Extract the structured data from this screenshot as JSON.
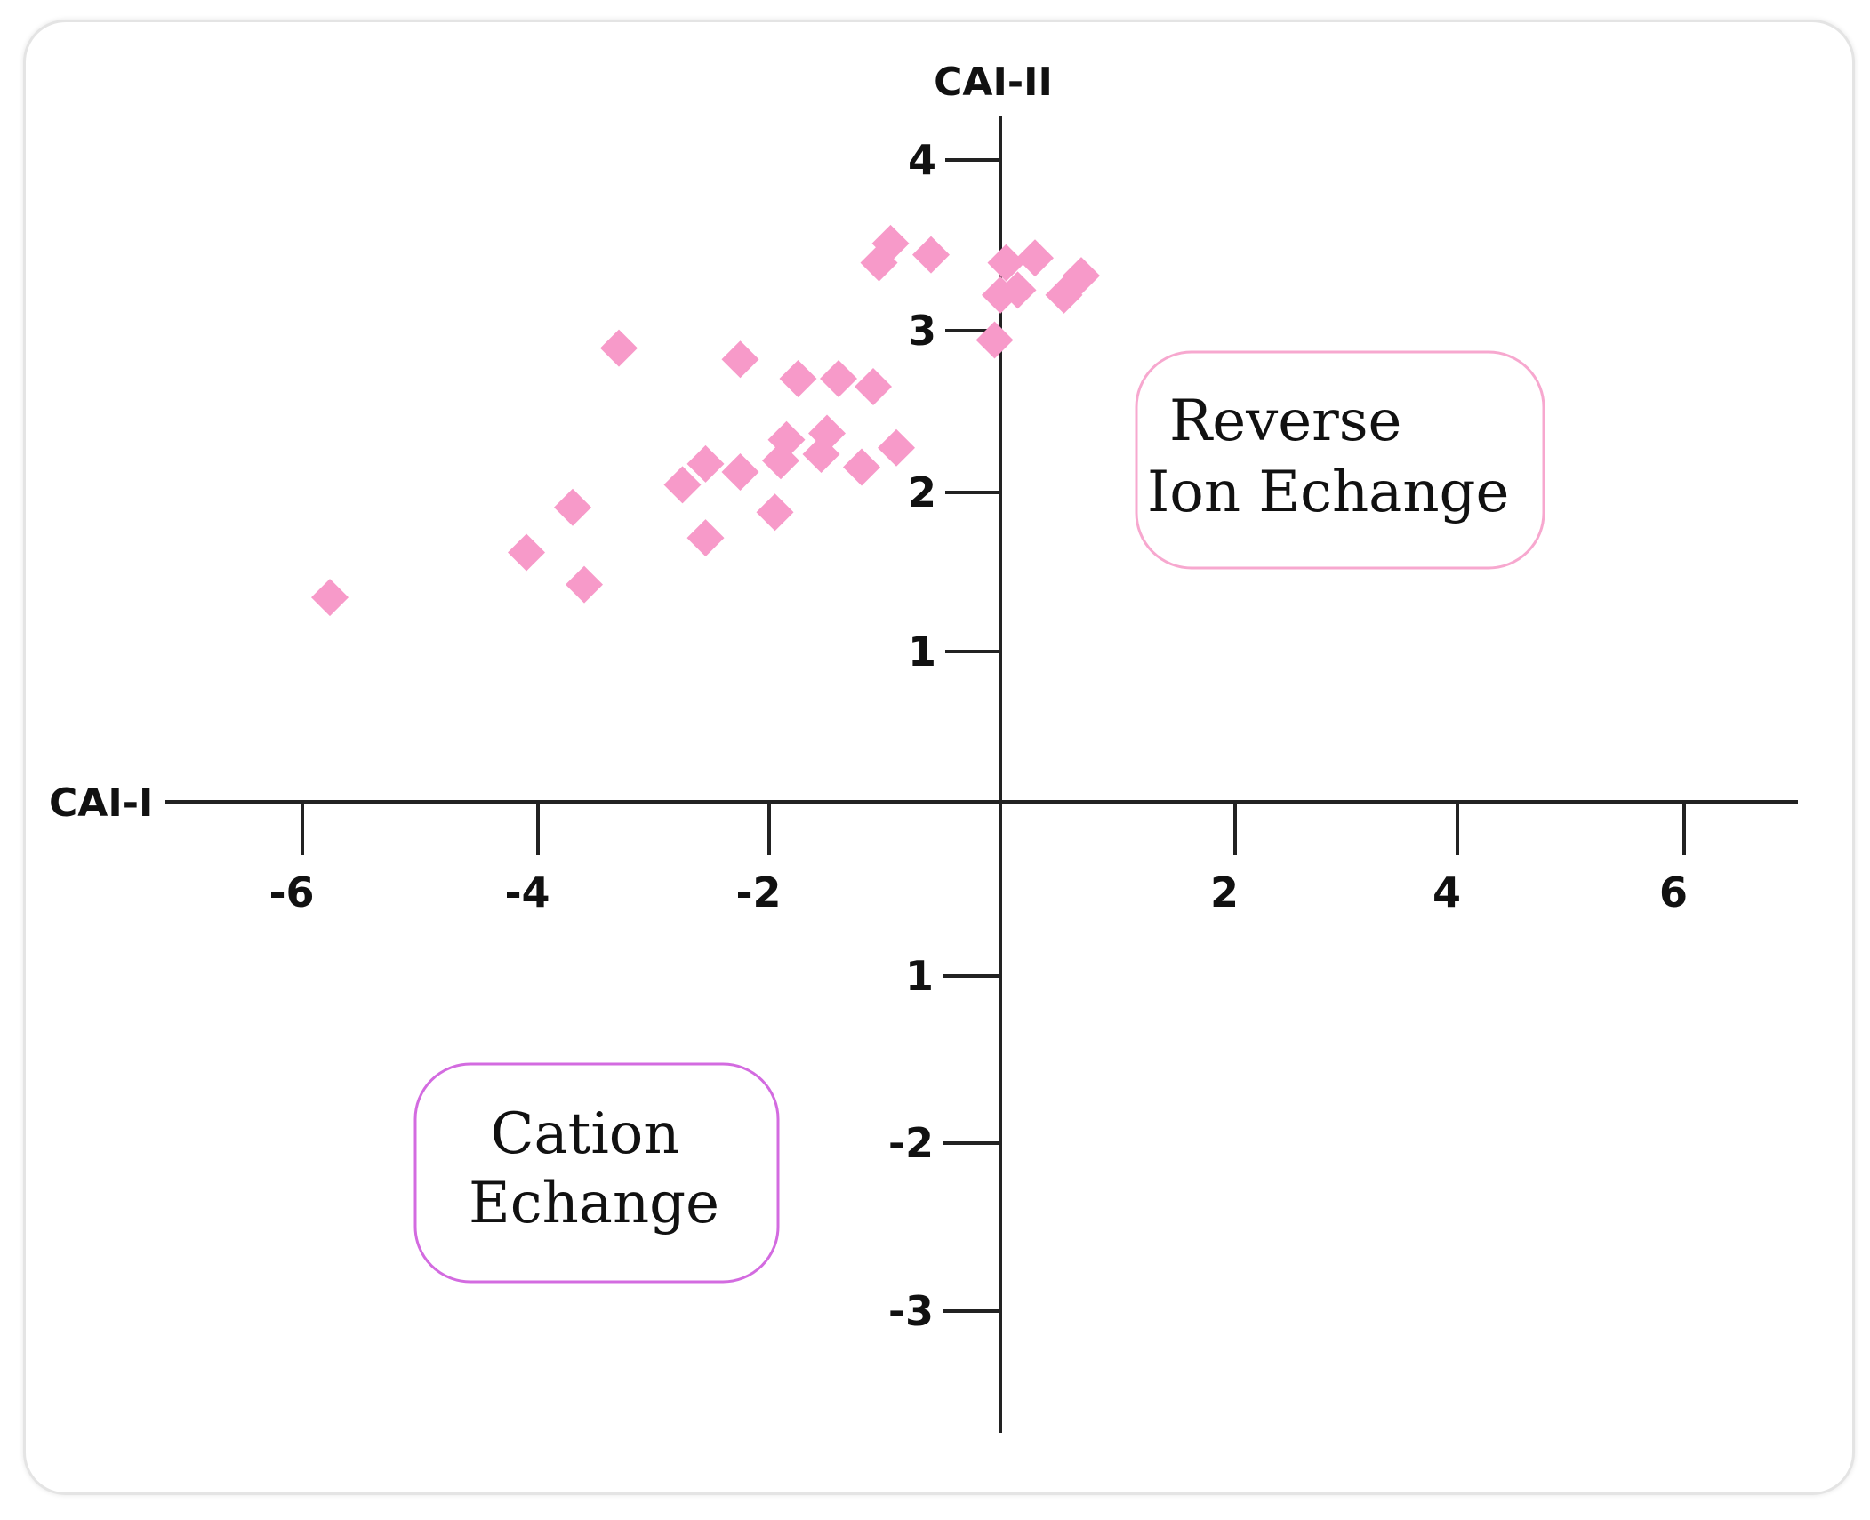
{
  "chart_data": {
    "type": "scatter",
    "title": "",
    "xlabel": "CAI-I",
    "ylabel": "CAI-II",
    "marker": "diamond",
    "marker_color": "#f79ac9",
    "x_ticks": [
      "-6",
      "-4",
      "-2",
      "2",
      "4",
      "6"
    ],
    "y_ticks_upper": [
      "4",
      "3",
      "2",
      "1"
    ],
    "y_ticks_lower": [
      "1",
      "-2",
      "-3"
    ],
    "xlim": [
      -7.6,
      6.9
    ],
    "ylim": [
      -3.8,
      4.3
    ],
    "grid": false,
    "points": [
      {
        "x": -5.8,
        "y": 1.27
      },
      {
        "x": -4.1,
        "y": 1.55
      },
      {
        "x": -3.7,
        "y": 1.83
      },
      {
        "x": -3.6,
        "y": 1.35
      },
      {
        "x": -3.3,
        "y": 2.82
      },
      {
        "x": -2.75,
        "y": 1.97
      },
      {
        "x": -2.55,
        "y": 2.1
      },
      {
        "x": -2.55,
        "y": 1.64
      },
      {
        "x": -2.25,
        "y": 2.75
      },
      {
        "x": -2.25,
        "y": 2.05
      },
      {
        "x": -1.95,
        "y": 1.8
      },
      {
        "x": -1.9,
        "y": 2.12
      },
      {
        "x": -1.85,
        "y": 2.25
      },
      {
        "x": -1.75,
        "y": 2.63
      },
      {
        "x": -1.55,
        "y": 2.16
      },
      {
        "x": -1.5,
        "y": 2.29
      },
      {
        "x": -1.4,
        "y": 2.63
      },
      {
        "x": -1.2,
        "y": 2.08
      },
      {
        "x": -1.1,
        "y": 2.58
      },
      {
        "x": -1.05,
        "y": 3.35
      },
      {
        "x": -0.95,
        "y": 3.47
      },
      {
        "x": -0.9,
        "y": 2.2
      },
      {
        "x": -0.6,
        "y": 3.4
      },
      {
        "x": -0.05,
        "y": 2.87
      },
      {
        "x": 0.0,
        "y": 3.15
      },
      {
        "x": 0.05,
        "y": 3.35
      },
      {
        "x": 0.15,
        "y": 3.18
      },
      {
        "x": 0.3,
        "y": 3.38
      },
      {
        "x": 0.55,
        "y": 3.15
      },
      {
        "x": 0.7,
        "y": 3.27
      }
    ],
    "annotations": [
      {
        "id": "reverse",
        "lines": [
          "Reverse",
          "Ion Echange"
        ],
        "border_color": "#f7a8cf"
      },
      {
        "id": "cation",
        "lines": [
          "Cation",
          "Echange"
        ],
        "border_color": "#d36be0"
      }
    ]
  }
}
